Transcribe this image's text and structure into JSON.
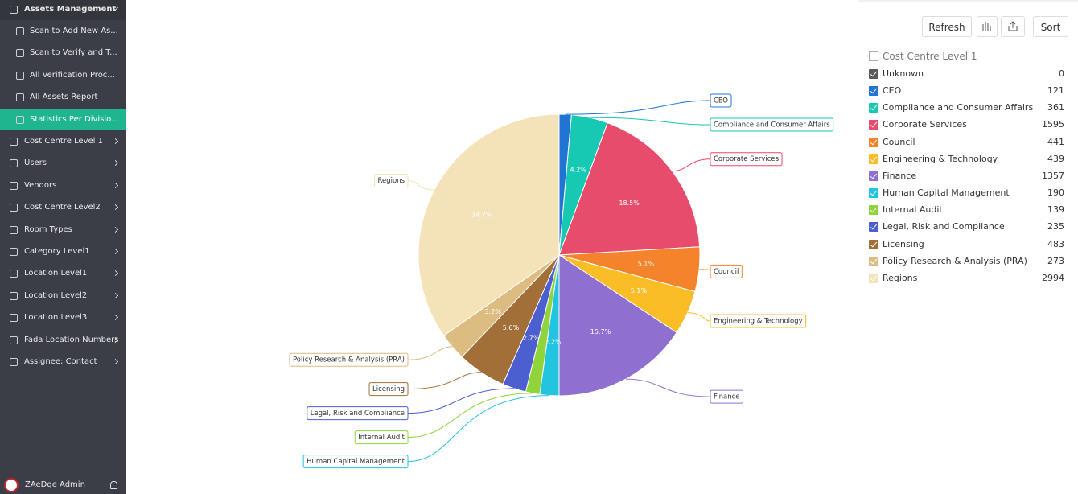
{
  "sidebar": {
    "items": [
      {
        "label": "Assets Management",
        "kind": "header"
      },
      {
        "label": "Scan to Add New As...",
        "kind": "sub"
      },
      {
        "label": "Scan to Verify and T...",
        "kind": "sub"
      },
      {
        "label": "All Verification Proc...",
        "kind": "sub"
      },
      {
        "label": "All Assets Report",
        "kind": "sub"
      },
      {
        "label": "Statistics Per Divisio...",
        "kind": "active"
      },
      {
        "label": "Cost Centre Level 1",
        "kind": "item"
      },
      {
        "label": "Users",
        "kind": "item"
      },
      {
        "label": "Vendors",
        "kind": "item"
      },
      {
        "label": "Cost Centre Level2",
        "kind": "item"
      },
      {
        "label": "Room Types",
        "kind": "item"
      },
      {
        "label": "Category Level1",
        "kind": "item"
      },
      {
        "label": "Location Level1",
        "kind": "item"
      },
      {
        "label": "Location Level2",
        "kind": "item"
      },
      {
        "label": "Location Level3",
        "kind": "item"
      },
      {
        "label": "Fada Location Numbers",
        "kind": "item"
      },
      {
        "label": "Assignee: Contact",
        "kind": "item"
      }
    ],
    "user": "ZAeDge Admin"
  },
  "toolbar": {
    "refresh": "Refresh",
    "sort": "Sort"
  },
  "chart_data": {
    "type": "pie",
    "legend_title": "Cost Centre Level 1",
    "categories": [
      "Unknown",
      "CEO",
      "Compliance and Consumer Affairs",
      "Corporate Services",
      "Council",
      "Engineering & Technology",
      "Finance",
      "Human Capital Management",
      "Internal Audit",
      "Legal, Risk and Compliance",
      "Licensing",
      "Policy Research & Analysis (PRA)",
      "Regions"
    ],
    "values": [
      0,
      121,
      361,
      1595,
      441,
      439,
      1357,
      190,
      139,
      235,
      483,
      273,
      2994
    ],
    "slice_labels": [
      null,
      null,
      "4.2%",
      "18.5%",
      "5.1%",
      "5.1%",
      "15.7%",
      "2.2%",
      null,
      "2.7%",
      "5.6%",
      "3.2%",
      "34.7%"
    ],
    "colors": [
      "#5a5a5a",
      "#1f74d4",
      "#17c9b3",
      "#e84c6c",
      "#f5832b",
      "#fbbd26",
      "#8f6fd0",
      "#22c4e0",
      "#8fd43b",
      "#4b5fd0",
      "#a26f38",
      "#dcbc80",
      "#f4e2b8"
    ]
  }
}
